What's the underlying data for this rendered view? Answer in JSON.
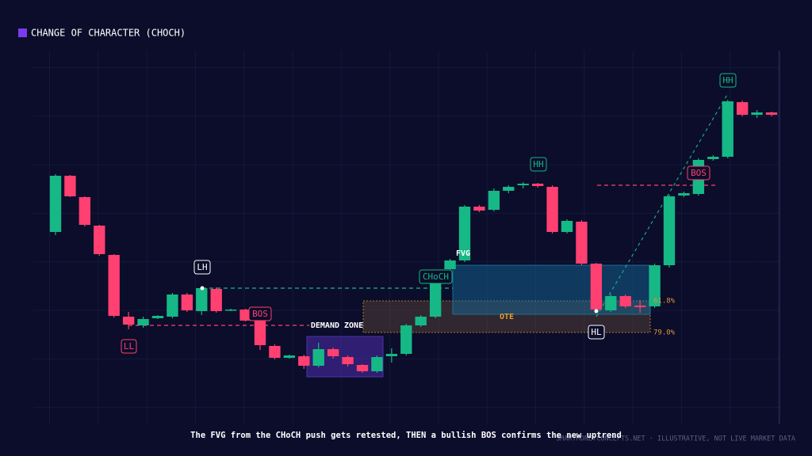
{
  "chart_data": {
    "type": "candlestick",
    "title": "CHANGE OF CHARACTER (CHOCH)",
    "open": [
      247,
      318,
      291,
      255,
      218,
      140,
      129,
      138,
      140,
      168,
      147,
      175,
      148,
      149,
      135,
      103,
      88,
      90,
      78,
      99,
      89,
      79,
      71,
      90,
      93,
      129,
      140,
      200,
      211,
      279,
      275,
      299,
      306,
      308,
      304,
      247,
      260,
      207,
      148,
      166,
      154,
      153,
      205,
      293,
      295,
      339,
      342,
      411,
      395,
      398
    ],
    "high": [
      320,
      319,
      292,
      256,
      219,
      146,
      140,
      142,
      170,
      170,
      178,
      177,
      150,
      150,
      136,
      105,
      92,
      92,
      107,
      101,
      91,
      80,
      91,
      100,
      131,
      142,
      188,
      213,
      281,
      281,
      302,
      306,
      310,
      309,
      306,
      263,
      262,
      208,
      168,
      168,
      161,
      207,
      294,
      298,
      340,
      344,
      414,
      413,
      401,
      399
    ],
    "low": [
      243,
      291,
      254,
      217,
      139,
      124,
      126,
      137,
      138,
      146,
      142,
      145,
      147,
      134,
      98,
      86,
      87,
      74,
      76,
      87,
      77,
      69,
      69,
      82,
      91,
      127,
      138,
      198,
      209,
      272,
      273,
      296,
      302,
      303,
      245,
      245,
      205,
      146,
      146,
      151,
      145,
      151,
      202,
      291,
      293,
      337,
      340,
      393,
      391,
      393
    ],
    "close": [
      318,
      292,
      256,
      219,
      141,
      130,
      137,
      141,
      168,
      148,
      176,
      147,
      149,
      135,
      104,
      88,
      91,
      78,
      99,
      90,
      80,
      71,
      89,
      93,
      129,
      140,
      184,
      211,
      279,
      274,
      299,
      304,
      308,
      305,
      247,
      261,
      207,
      149,
      166,
      153,
      152,
      205,
      292,
      296,
      338,
      342,
      412,
      395,
      398,
      395
    ],
    "ylim": [
      0,
      480
    ],
    "up_color": "#16b886",
    "down_color": "#ff4070",
    "annotations": [
      "LL",
      "LH",
      "BOS",
      "DEMAND ZONE",
      "CHoCH",
      "FVG",
      "OTE",
      "HH",
      "HL",
      "BOS",
      "HH",
      "61.8%",
      "79.0%"
    ],
    "caption": "The FVG from the CHoCH push gets retested, THEN a bullish BOS confirms the new uptrend",
    "source": "SMARTMONEYCONCEPTS.NET · ILLUSTRATIVE, NOT LIVE MARKET DATA"
  }
}
